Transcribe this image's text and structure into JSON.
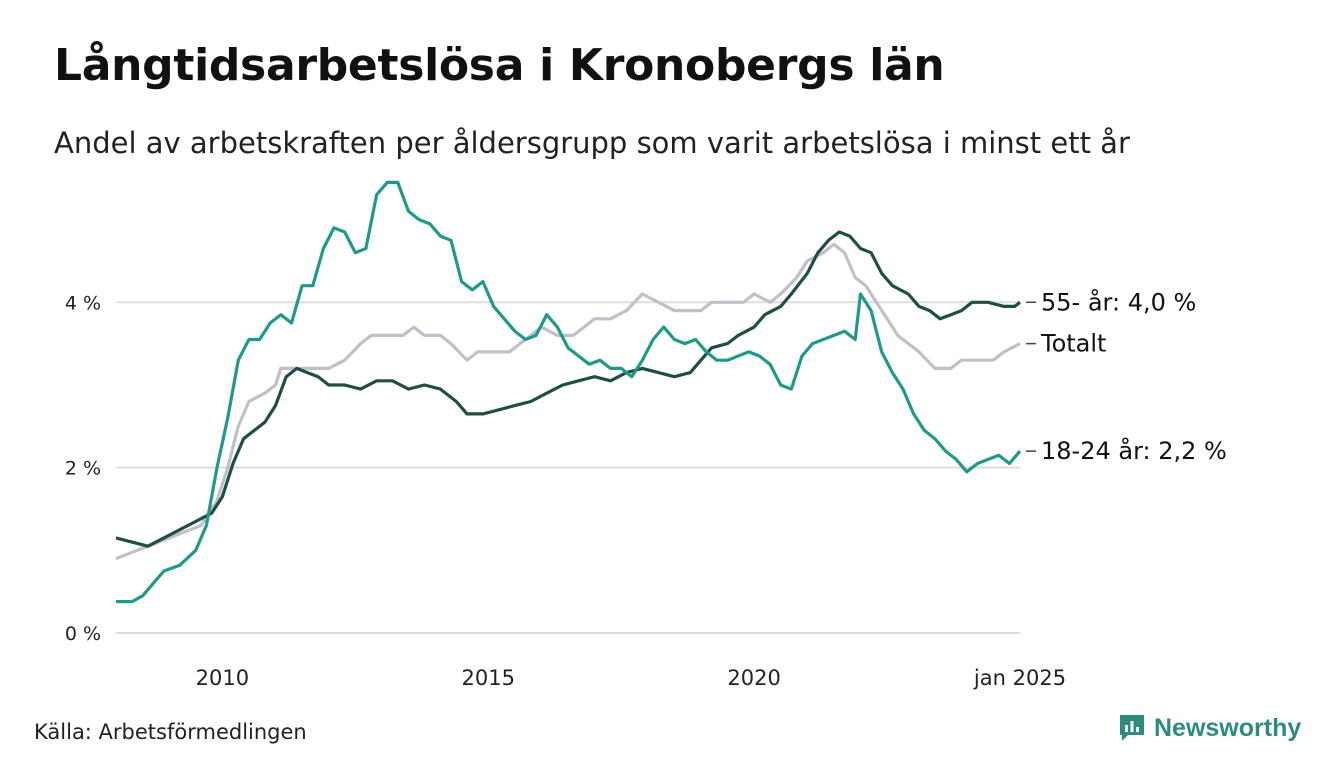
{
  "title": "Långtidsarbetslösa i Kronobergs län",
  "subtitle": "Andel av arbetskraften per åldersgrupp som varit arbetslösa i minst ett år",
  "source": "Källa: Arbetsförmedlingen",
  "brand": "Newsworthy",
  "colors": {
    "series_55": "#1f4e44",
    "series_total": "#c2bfcb",
    "series_18_24": "#1f9a8a",
    "grid": "#dddddd",
    "brand": "#2c8c7d"
  },
  "chart_data": {
    "type": "line",
    "ylim": [
      0,
      5.6
    ],
    "y_ticks": [
      {
        "value": 0,
        "label": "0 %"
      },
      {
        "value": 2,
        "label": "2 %"
      },
      {
        "value": 4,
        "label": "4 %"
      }
    ],
    "x_ticks": [
      {
        "value": 2010,
        "label": "2010"
      },
      {
        "value": 2015,
        "label": "2015"
      },
      {
        "value": 2020,
        "label": "2020"
      },
      {
        "value": 2025,
        "label": "jan 2025"
      }
    ],
    "xlim": [
      2008.0,
      2025.0
    ],
    "series": [
      {
        "key": "total",
        "label": "Totalt",
        "end_label": "Totalt",
        "points": [
          [
            2008.0,
            0.9
          ],
          [
            2008.4,
            1.0
          ],
          [
            2008.8,
            1.1
          ],
          [
            2009.2,
            1.2
          ],
          [
            2009.6,
            1.3
          ],
          [
            2009.9,
            1.6
          ],
          [
            2010.1,
            2.0
          ],
          [
            2010.3,
            2.5
          ],
          [
            2010.5,
            2.8
          ],
          [
            2010.8,
            2.9
          ],
          [
            2011.0,
            3.0
          ],
          [
            2011.1,
            3.2
          ],
          [
            2011.5,
            3.2
          ],
          [
            2012.0,
            3.2
          ],
          [
            2012.3,
            3.3
          ],
          [
            2012.6,
            3.5
          ],
          [
            2012.8,
            3.6
          ],
          [
            2013.2,
            3.6
          ],
          [
            2013.4,
            3.6
          ],
          [
            2013.6,
            3.7
          ],
          [
            2013.8,
            3.6
          ],
          [
            2014.1,
            3.6
          ],
          [
            2014.3,
            3.5
          ],
          [
            2014.6,
            3.3
          ],
          [
            2014.8,
            3.4
          ],
          [
            2015.1,
            3.4
          ],
          [
            2015.4,
            3.4
          ],
          [
            2015.6,
            3.5
          ],
          [
            2015.8,
            3.6
          ],
          [
            2016.0,
            3.7
          ],
          [
            2016.3,
            3.6
          ],
          [
            2016.6,
            3.6
          ],
          [
            2016.8,
            3.7
          ],
          [
            2017.0,
            3.8
          ],
          [
            2017.3,
            3.8
          ],
          [
            2017.6,
            3.9
          ],
          [
            2017.9,
            4.1
          ],
          [
            2018.2,
            4.0
          ],
          [
            2018.5,
            3.9
          ],
          [
            2018.8,
            3.9
          ],
          [
            2019.0,
            3.9
          ],
          [
            2019.2,
            4.0
          ],
          [
            2019.5,
            4.0
          ],
          [
            2019.8,
            4.0
          ],
          [
            2020.0,
            4.1
          ],
          [
            2020.3,
            4.0
          ],
          [
            2020.5,
            4.1
          ],
          [
            2020.8,
            4.3
          ],
          [
            2021.0,
            4.5
          ],
          [
            2021.3,
            4.6
          ],
          [
            2021.5,
            4.7
          ],
          [
            2021.7,
            4.6
          ],
          [
            2021.9,
            4.3
          ],
          [
            2022.1,
            4.2
          ],
          [
            2022.3,
            4.0
          ],
          [
            2022.5,
            3.8
          ],
          [
            2022.7,
            3.6
          ],
          [
            2022.9,
            3.5
          ],
          [
            2023.1,
            3.4
          ],
          [
            2023.4,
            3.2
          ],
          [
            2023.7,
            3.2
          ],
          [
            2023.9,
            3.3
          ],
          [
            2024.2,
            3.3
          ],
          [
            2024.5,
            3.3
          ],
          [
            2024.7,
            3.4
          ],
          [
            2025.0,
            3.5
          ]
        ]
      },
      {
        "key": "age_55",
        "label": "55- år",
        "end_label": "55- år: 4,0 %",
        "points": [
          [
            2008.0,
            1.15
          ],
          [
            2008.3,
            1.1
          ],
          [
            2008.6,
            1.05
          ],
          [
            2008.9,
            1.15
          ],
          [
            2009.2,
            1.25
          ],
          [
            2009.5,
            1.35
          ],
          [
            2009.8,
            1.45
          ],
          [
            2010.0,
            1.65
          ],
          [
            2010.2,
            2.05
          ],
          [
            2010.4,
            2.35
          ],
          [
            2010.6,
            2.45
          ],
          [
            2010.8,
            2.55
          ],
          [
            2011.0,
            2.75
          ],
          [
            2011.2,
            3.1
          ],
          [
            2011.4,
            3.2
          ],
          [
            2011.6,
            3.15
          ],
          [
            2011.8,
            3.1
          ],
          [
            2012.0,
            3.0
          ],
          [
            2012.3,
            3.0
          ],
          [
            2012.6,
            2.95
          ],
          [
            2012.9,
            3.05
          ],
          [
            2013.2,
            3.05
          ],
          [
            2013.5,
            2.95
          ],
          [
            2013.8,
            3.0
          ],
          [
            2014.1,
            2.95
          ],
          [
            2014.4,
            2.8
          ],
          [
            2014.6,
            2.65
          ],
          [
            2014.9,
            2.65
          ],
          [
            2015.2,
            2.7
          ],
          [
            2015.5,
            2.75
          ],
          [
            2015.8,
            2.8
          ],
          [
            2016.1,
            2.9
          ],
          [
            2016.4,
            3.0
          ],
          [
            2016.7,
            3.05
          ],
          [
            2017.0,
            3.1
          ],
          [
            2017.3,
            3.05
          ],
          [
            2017.6,
            3.15
          ],
          [
            2017.9,
            3.2
          ],
          [
            2018.2,
            3.15
          ],
          [
            2018.5,
            3.1
          ],
          [
            2018.8,
            3.15
          ],
          [
            2019.0,
            3.3
          ],
          [
            2019.2,
            3.45
          ],
          [
            2019.5,
            3.5
          ],
          [
            2019.7,
            3.6
          ],
          [
            2020.0,
            3.7
          ],
          [
            2020.2,
            3.85
          ],
          [
            2020.5,
            3.95
          ],
          [
            2020.7,
            4.1
          ],
          [
            2021.0,
            4.35
          ],
          [
            2021.2,
            4.6
          ],
          [
            2021.4,
            4.75
          ],
          [
            2021.6,
            4.85
          ],
          [
            2021.8,
            4.8
          ],
          [
            2022.0,
            4.65
          ],
          [
            2022.2,
            4.6
          ],
          [
            2022.4,
            4.35
          ],
          [
            2022.6,
            4.2
          ],
          [
            2022.9,
            4.1
          ],
          [
            2023.1,
            3.95
          ],
          [
            2023.3,
            3.9
          ],
          [
            2023.5,
            3.8
          ],
          [
            2023.7,
            3.85
          ],
          [
            2023.9,
            3.9
          ],
          [
            2024.1,
            4.0
          ],
          [
            2024.4,
            4.0
          ],
          [
            2024.7,
            3.95
          ],
          [
            2024.9,
            3.95
          ],
          [
            2025.0,
            4.0
          ]
        ]
      },
      {
        "key": "age_18_24",
        "label": "18-24 år",
        "end_label": "18-24 år: 2,2 %",
        "points": [
          [
            2008.0,
            0.38
          ],
          [
            2008.3,
            0.38
          ],
          [
            2008.5,
            0.45
          ],
          [
            2008.7,
            0.6
          ],
          [
            2008.9,
            0.75
          ],
          [
            2009.2,
            0.82
          ],
          [
            2009.5,
            1.0
          ],
          [
            2009.7,
            1.3
          ],
          [
            2009.9,
            2.0
          ],
          [
            2010.1,
            2.6
          ],
          [
            2010.3,
            3.3
          ],
          [
            2010.5,
            3.55
          ],
          [
            2010.7,
            3.55
          ],
          [
            2010.9,
            3.75
          ],
          [
            2011.1,
            3.85
          ],
          [
            2011.3,
            3.75
          ],
          [
            2011.5,
            4.2
          ],
          [
            2011.7,
            4.2
          ],
          [
            2011.9,
            4.65
          ],
          [
            2012.1,
            4.9
          ],
          [
            2012.3,
            4.85
          ],
          [
            2012.5,
            4.6
          ],
          [
            2012.7,
            4.65
          ],
          [
            2012.9,
            5.3
          ],
          [
            2013.1,
            5.45
          ],
          [
            2013.3,
            5.45
          ],
          [
            2013.5,
            5.1
          ],
          [
            2013.7,
            5.0
          ],
          [
            2013.9,
            4.95
          ],
          [
            2014.1,
            4.8
          ],
          [
            2014.3,
            4.75
          ],
          [
            2014.5,
            4.25
          ],
          [
            2014.7,
            4.15
          ],
          [
            2014.9,
            4.25
          ],
          [
            2015.1,
            3.95
          ],
          [
            2015.3,
            3.8
          ],
          [
            2015.5,
            3.65
          ],
          [
            2015.7,
            3.55
          ],
          [
            2015.9,
            3.6
          ],
          [
            2016.1,
            3.85
          ],
          [
            2016.3,
            3.7
          ],
          [
            2016.5,
            3.45
          ],
          [
            2016.7,
            3.35
          ],
          [
            2016.9,
            3.25
          ],
          [
            2017.1,
            3.3
          ],
          [
            2017.3,
            3.2
          ],
          [
            2017.5,
            3.2
          ],
          [
            2017.7,
            3.1
          ],
          [
            2017.9,
            3.3
          ],
          [
            2018.1,
            3.55
          ],
          [
            2018.3,
            3.7
          ],
          [
            2018.5,
            3.55
          ],
          [
            2018.7,
            3.5
          ],
          [
            2018.9,
            3.55
          ],
          [
            2019.1,
            3.4
          ],
          [
            2019.3,
            3.3
          ],
          [
            2019.5,
            3.3
          ],
          [
            2019.7,
            3.35
          ],
          [
            2019.9,
            3.4
          ],
          [
            2020.1,
            3.35
          ],
          [
            2020.3,
            3.25
          ],
          [
            2020.5,
            3.0
          ],
          [
            2020.7,
            2.95
          ],
          [
            2020.9,
            3.35
          ],
          [
            2021.1,
            3.5
          ],
          [
            2021.3,
            3.55
          ],
          [
            2021.5,
            3.6
          ],
          [
            2021.7,
            3.65
          ],
          [
            2021.9,
            3.55
          ],
          [
            2022.0,
            4.1
          ],
          [
            2022.2,
            3.9
          ],
          [
            2022.4,
            3.4
          ],
          [
            2022.6,
            3.15
          ],
          [
            2022.8,
            2.95
          ],
          [
            2023.0,
            2.65
          ],
          [
            2023.2,
            2.45
          ],
          [
            2023.4,
            2.35
          ],
          [
            2023.6,
            2.2
          ],
          [
            2023.8,
            2.1
          ],
          [
            2024.0,
            1.95
          ],
          [
            2024.2,
            2.05
          ],
          [
            2024.4,
            2.1
          ],
          [
            2024.6,
            2.15
          ],
          [
            2024.8,
            2.05
          ],
          [
            2025.0,
            2.2
          ]
        ]
      }
    ]
  }
}
